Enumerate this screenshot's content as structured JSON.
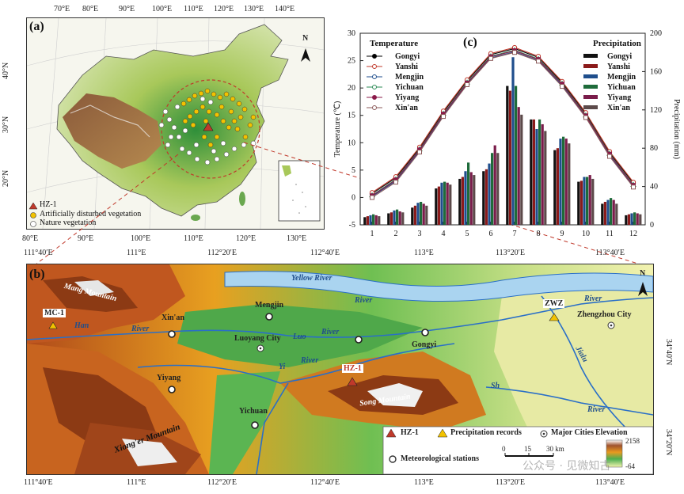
{
  "panel_a": {
    "tag": "(a)",
    "top_lon": [
      "70°E",
      "80°E",
      "90°E",
      "100°E",
      "110°E",
      "120°E",
      "130°E",
      "140°E"
    ],
    "bottom_lon": [
      "80°E",
      "90°E",
      "100°E",
      "110°E",
      "120°E",
      "130°E"
    ],
    "lat": [
      "40°N",
      "30°N",
      "20°N"
    ],
    "north": "N",
    "legend": {
      "hz": "HZ-1",
      "artificial": "Artificially disturbed vegetation",
      "nature": "Nature vegetation"
    }
  },
  "panel_b": {
    "tag": "(b)",
    "top_lon": [
      "111°40′E",
      "111°E",
      "112°20′E",
      "112°40′E",
      "113°E",
      "113°20′E",
      "113°40′E"
    ],
    "bottom_lon": [
      "111°40′E",
      "111°E",
      "112°20′E",
      "112°40′E",
      "113°E",
      "113°20′E",
      "113°40′E"
    ],
    "right_lat": [
      "34°40′N",
      "34°20′N"
    ],
    "north": "N",
    "labels": {
      "mang": "Mang Mountain",
      "yellow_river": "Yellow River",
      "yellow_river2": "River",
      "mc1": "MC-1",
      "xinan": "Xin'an",
      "mengjin": "Mengjin",
      "luoyang": "Luoyang City",
      "luo": "Luo",
      "luo_river": "River",
      "gongyi": "Gongyi",
      "zwz": "ZWZ",
      "zhengzhou": "Zhengzhou City",
      "river_right": "River",
      "jialu": "Jialu",
      "hz1": "HZ-1",
      "yi": "Yi",
      "yi_river": "River",
      "yiyang": "Yiyang",
      "yichuan": "Yichuan",
      "song": "Song Mountain",
      "xiong": "Xiong'er Mountain",
      "jiaolu_river": "River",
      "han": "Han",
      "han_river": "River",
      "shuanji": "Sh"
    },
    "legend": {
      "hz": "HZ-1",
      "precip": "Precipitation records",
      "cities": "Major Cities",
      "met": "Meteorological stations",
      "scale": [
        "0",
        "15",
        "30 km"
      ],
      "elev_title": "Elevation",
      "elev_max": "2158",
      "elev_min": "-64"
    }
  },
  "panel_c": {
    "tag": "(c)"
  },
  "watermark": "公众号 · 见微知古",
  "chart_data": {
    "type": "bar+line",
    "categories": [
      "1",
      "2",
      "3",
      "4",
      "5",
      "6",
      "7",
      "8",
      "9",
      "10",
      "11",
      "12"
    ],
    "ylabel_left": "Temperature (℃)",
    "ylabel_right": "Precipitation (mm)",
    "ylim_left": [
      -5,
      30
    ],
    "ylim_right": [
      0,
      200
    ],
    "yticks_left": [
      "-5",
      "0",
      "5",
      "10",
      "15",
      "20",
      "25",
      "30"
    ],
    "yticks_right": [
      "0",
      "40",
      "80",
      "120",
      "160",
      "200"
    ],
    "temp_legend_title": "Temperature",
    "precip_legend_title": "Precipitation",
    "temperature": [
      {
        "name": "Gongyi",
        "color": "#000000",
        "marker": "circle-filled",
        "values": [
          0.7,
          3.6,
          9.0,
          15.6,
          21.3,
          26.1,
          27.2,
          25.6,
          21.0,
          15.3,
          8.2,
          2.6
        ]
      },
      {
        "name": "Yanshi",
        "color": "#c0392b",
        "marker": "circle-open",
        "values": [
          0.9,
          3.8,
          9.2,
          15.8,
          21.5,
          26.3,
          27.4,
          25.8,
          21.2,
          15.5,
          8.4,
          2.8
        ]
      },
      {
        "name": "Mengjin",
        "color": "#1f4e8c",
        "marker": "triangle-down",
        "values": [
          0.2,
          3.0,
          8.5,
          15.0,
          20.8,
          25.5,
          26.6,
          25.0,
          20.5,
          14.8,
          7.7,
          2.0
        ]
      },
      {
        "name": "Yichuan",
        "color": "#2e8b57",
        "marker": "triangle-up-open",
        "values": [
          0.4,
          3.3,
          8.8,
          15.3,
          21.0,
          25.8,
          26.9,
          25.3,
          20.8,
          15.0,
          8.0,
          2.3
        ]
      },
      {
        "name": "Yiyang",
        "color": "#8b1a4a",
        "marker": "square-filled",
        "values": [
          0.3,
          3.2,
          8.7,
          15.2,
          20.9,
          25.7,
          26.8,
          25.2,
          20.7,
          14.9,
          7.9,
          2.2
        ]
      },
      {
        "name": "Xin'an",
        "color": "#8b5a5a",
        "marker": "square-open",
        "values": [
          0.0,
          2.8,
          8.3,
          14.8,
          20.6,
          25.4,
          26.5,
          24.9,
          20.3,
          14.6,
          7.5,
          1.9
        ]
      }
    ],
    "precipitation": [
      {
        "name": "Gongyi",
        "color": "#111111",
        "values": [
          8,
          12,
          18,
          38,
          48,
          56,
          145,
          110,
          78,
          45,
          22,
          10
        ]
      },
      {
        "name": "Yanshi",
        "color": "#8b1a1a",
        "values": [
          9,
          13,
          20,
          40,
          50,
          58,
          140,
          110,
          80,
          46,
          24,
          11
        ]
      },
      {
        "name": "Mengjin",
        "color": "#1f4e8c",
        "values": [
          10,
          15,
          23,
          44,
          56,
          64,
          175,
          100,
          90,
          50,
          26,
          12
        ]
      },
      {
        "name": "Yichuan",
        "color": "#1e6b3a",
        "values": [
          11,
          16,
          24,
          45,
          65,
          75,
          145,
          110,
          92,
          50,
          28,
          13
        ]
      },
      {
        "name": "Yiyang",
        "color": "#7a1c4a",
        "values": [
          10,
          14,
          22,
          44,
          55,
          83,
          123,
          105,
          90,
          52,
          26,
          12
        ]
      },
      {
        "name": "Xin'an",
        "color": "#5c4a4a",
        "values": [
          9,
          13,
          20,
          42,
          52,
          75,
          115,
          98,
          85,
          48,
          22,
          11
        ]
      }
    ]
  }
}
